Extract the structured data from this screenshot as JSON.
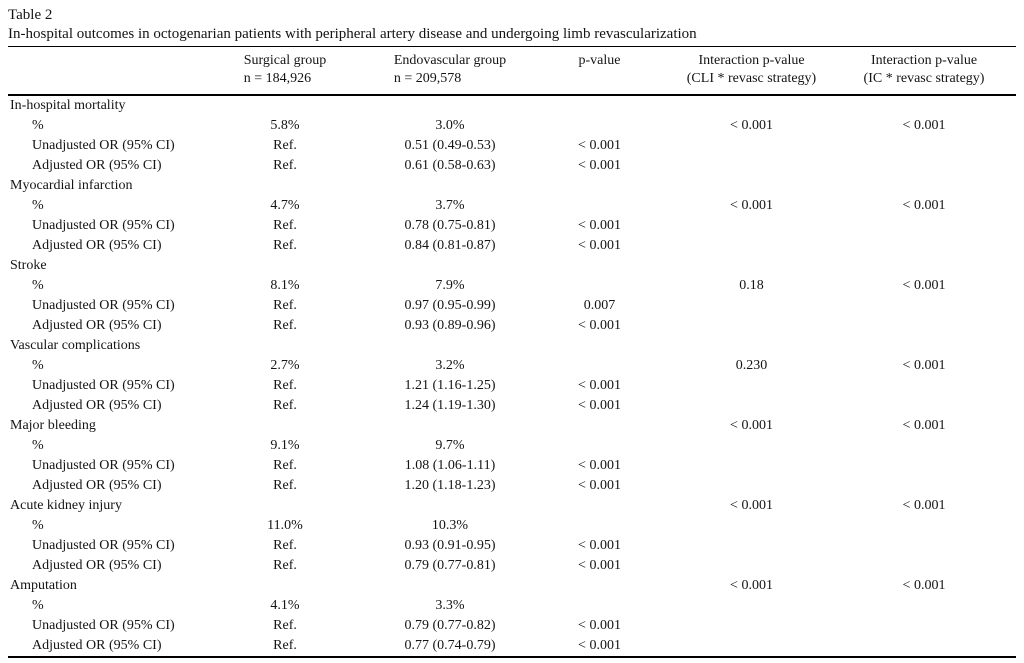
{
  "table": {
    "label": "Table 2",
    "caption": "In-hospital outcomes in octogenarian patients with peripheral artery disease and undergoing limb revascularization",
    "columns": [
      {
        "line1": "",
        "line2": ""
      },
      {
        "line1": "Surgical group",
        "line2": "n = 184,926"
      },
      {
        "line1": "Endovascular group",
        "line2": "n = 209,578"
      },
      {
        "line1": "p-value",
        "line2": ""
      },
      {
        "line1": "Interaction p-value",
        "line2": "(CLI * revasc strategy)"
      },
      {
        "line1": "Interaction p-value",
        "line2": "(IC * revasc strategy)"
      }
    ],
    "rows": [
      {
        "label": "In-hospital mortality",
        "indent": false,
        "surgical": "",
        "endo": "",
        "p": "",
        "cli": "",
        "ic": ""
      },
      {
        "label": "%",
        "indent": true,
        "surgical": "5.8%",
        "endo": "3.0%",
        "p": "",
        "cli": "< 0.001",
        "ic": "< 0.001"
      },
      {
        "label": "Unadjusted OR (95% CI)",
        "indent": true,
        "surgical": "Ref.",
        "endo": "0.51 (0.49-0.53)",
        "p": "< 0.001",
        "cli": "",
        "ic": ""
      },
      {
        "label": "Adjusted OR (95% CI)",
        "indent": true,
        "surgical": "Ref.",
        "endo": "0.61 (0.58-0.63)",
        "p": "< 0.001",
        "cli": "",
        "ic": ""
      },
      {
        "label": "Myocardial infarction",
        "indent": false,
        "surgical": "",
        "endo": "",
        "p": "",
        "cli": "",
        "ic": ""
      },
      {
        "label": "%",
        "indent": true,
        "surgical": "4.7%",
        "endo": "3.7%",
        "p": "",
        "cli": "< 0.001",
        "ic": "< 0.001"
      },
      {
        "label": "Unadjusted OR (95% CI)",
        "indent": true,
        "surgical": "Ref.",
        "endo": "0.78 (0.75-0.81)",
        "p": "< 0.001",
        "cli": "",
        "ic": ""
      },
      {
        "label": "Adjusted OR (95% CI)",
        "indent": true,
        "surgical": "Ref.",
        "endo": "0.84 (0.81-0.87)",
        "p": "< 0.001",
        "cli": "",
        "ic": ""
      },
      {
        "label": "Stroke",
        "indent": false,
        "surgical": "",
        "endo": "",
        "p": "",
        "cli": "",
        "ic": ""
      },
      {
        "label": "%",
        "indent": true,
        "surgical": "8.1%",
        "endo": "7.9%",
        "p": "",
        "cli": "0.18",
        "ic": "< 0.001"
      },
      {
        "label": "Unadjusted OR (95% CI)",
        "indent": true,
        "surgical": "Ref.",
        "endo": "0.97 (0.95-0.99)",
        "p": "0.007",
        "cli": "",
        "ic": ""
      },
      {
        "label": "Adjusted OR (95% CI)",
        "indent": true,
        "surgical": "Ref.",
        "endo": "0.93 (0.89-0.96)",
        "p": "< 0.001",
        "cli": "",
        "ic": ""
      },
      {
        "label": "Vascular complications",
        "indent": false,
        "surgical": "",
        "endo": "",
        "p": "",
        "cli": "",
        "ic": ""
      },
      {
        "label": "%",
        "indent": true,
        "surgical": "2.7%",
        "endo": "3.2%",
        "p": "",
        "cli": "0.230",
        "ic": "< 0.001"
      },
      {
        "label": "Unadjusted OR (95% CI)",
        "indent": true,
        "surgical": "Ref.",
        "endo": "1.21 (1.16-1.25)",
        "p": "< 0.001",
        "cli": "",
        "ic": ""
      },
      {
        "label": "Adjusted OR (95% CI)",
        "indent": true,
        "surgical": "Ref.",
        "endo": "1.24 (1.19-1.30)",
        "p": "< 0.001",
        "cli": "",
        "ic": ""
      },
      {
        "label": "Major bleeding",
        "indent": false,
        "surgical": "",
        "endo": "",
        "p": "",
        "cli": "< 0.001",
        "ic": "< 0.001"
      },
      {
        "label": "%",
        "indent": true,
        "surgical": "9.1%",
        "endo": "9.7%",
        "p": "",
        "cli": "",
        "ic": ""
      },
      {
        "label": "Unadjusted OR (95% CI)",
        "indent": true,
        "surgical": "Ref.",
        "endo": "1.08 (1.06-1.11)",
        "p": "< 0.001",
        "cli": "",
        "ic": ""
      },
      {
        "label": "Adjusted OR (95% CI)",
        "indent": true,
        "surgical": "Ref.",
        "endo": "1.20 (1.18-1.23)",
        "p": "< 0.001",
        "cli": "",
        "ic": ""
      },
      {
        "label": "Acute kidney injury",
        "indent": false,
        "surgical": "",
        "endo": "",
        "p": "",
        "cli": "< 0.001",
        "ic": "< 0.001"
      },
      {
        "label": "%",
        "indent": true,
        "surgical": "11.0%",
        "endo": "10.3%",
        "p": "",
        "cli": "",
        "ic": ""
      },
      {
        "label": "Unadjusted OR (95% CI)",
        "indent": true,
        "surgical": "Ref.",
        "endo": "0.93 (0.91-0.95)",
        "p": "< 0.001",
        "cli": "",
        "ic": ""
      },
      {
        "label": "Adjusted OR (95% CI)",
        "indent": true,
        "surgical": "Ref.",
        "endo": "0.79 (0.77-0.81)",
        "p": "< 0.001",
        "cli": "",
        "ic": ""
      },
      {
        "label": "Amputation",
        "indent": false,
        "surgical": "",
        "endo": "",
        "p": "",
        "cli": "< 0.001",
        "ic": "< 0.001"
      },
      {
        "label": "%",
        "indent": true,
        "surgical": "4.1%",
        "endo": "3.3%",
        "p": "",
        "cli": "",
        "ic": ""
      },
      {
        "label": "Unadjusted OR (95% CI)",
        "indent": true,
        "surgical": "Ref.",
        "endo": "0.79 (0.77-0.82)",
        "p": "< 0.001",
        "cli": "",
        "ic": ""
      },
      {
        "label": "Adjusted OR (95% CI)",
        "indent": true,
        "surgical": "Ref.",
        "endo": "0.77 (0.74-0.79)",
        "p": "< 0.001",
        "cli": "",
        "ic": ""
      }
    ]
  }
}
